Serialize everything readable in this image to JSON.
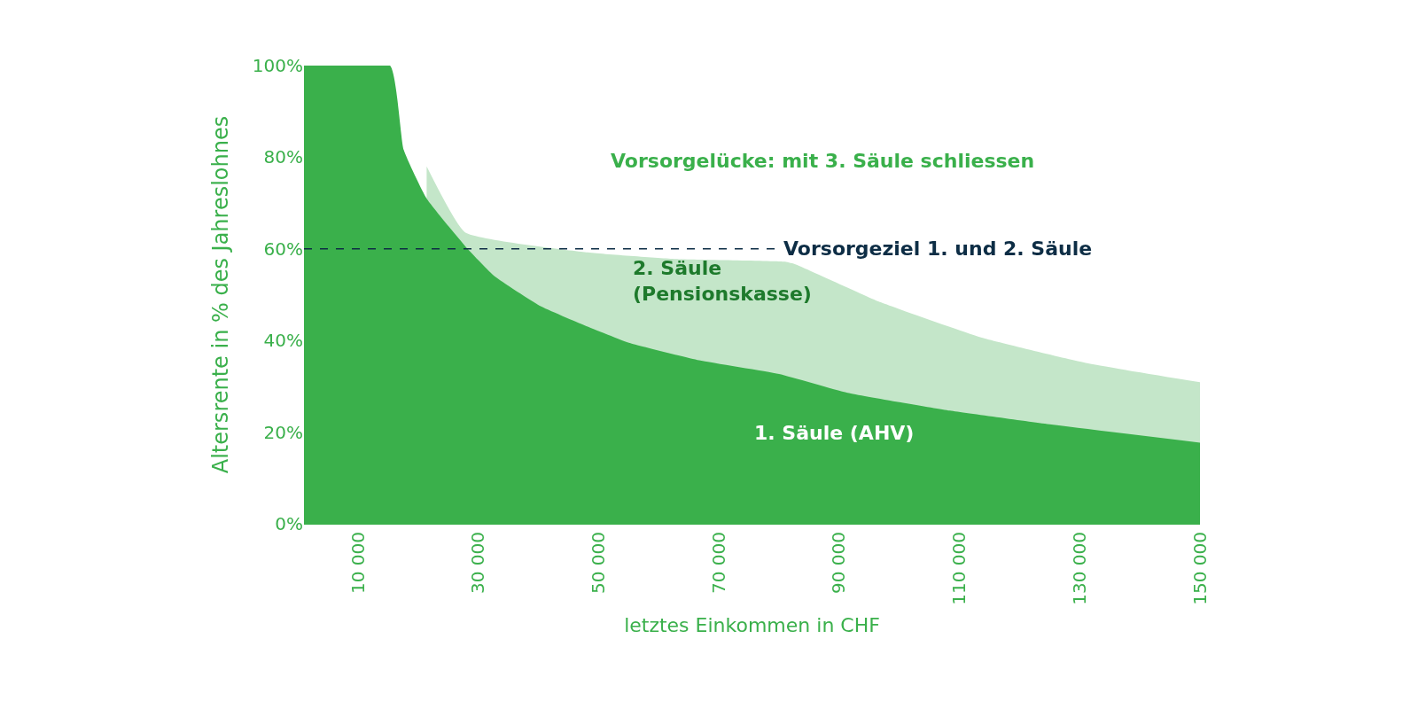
{
  "chart_data": {
    "type": "area",
    "xlabel": "letztes Einkommen in CHF",
    "ylabel": "Altersrente in % des Jahreslohnes",
    "xlim": [
      1000,
      150000
    ],
    "xticks": [
      {
        "value": 10000,
        "label": "10 000"
      },
      {
        "value": 30000,
        "label": "30 000"
      },
      {
        "value": 50000,
        "label": "50 000"
      },
      {
        "value": 70000,
        "label": "70 000"
      },
      {
        "value": 90000,
        "label": "90 000"
      },
      {
        "value": 110000,
        "label": "110 000"
      },
      {
        "value": 130000,
        "label": "130 000"
      },
      {
        "value": 150000,
        "label": "150 000"
      }
    ],
    "ylim": [
      0,
      100
    ],
    "yticks": [
      {
        "value": 0,
        "label": "0%"
      },
      {
        "value": 20,
        "label": "20%"
      },
      {
        "value": 40,
        "label": "40%"
      },
      {
        "value": 60,
        "label": "60%"
      },
      {
        "value": 80,
        "label": "80%"
      },
      {
        "value": 100,
        "label": "100%"
      }
    ],
    "series": [
      {
        "name": "2. Säule\n(Pensionskasse)",
        "color": "#c4e6c9",
        "x": [
          21400,
          27800,
          47700,
          62800,
          81000,
          82800,
          97000,
          114000,
          131000,
          150000
        ],
        "values": [
          78,
          63.6,
          59.3,
          57.8,
          57.2,
          56.6,
          48.3,
          40.5,
          35.1,
          30.9
        ]
      },
      {
        "name": "1. Säule (AHV)",
        "color": "#3ab04b",
        "x": [
          1000,
          15300,
          17600,
          21400,
          28200,
          32700,
          40200,
          47700,
          55300,
          66700,
          80000,
          91400,
          108400,
          125600,
          150000
        ],
        "values": [
          100,
          100,
          81.6,
          71,
          60,
          54,
          47.6,
          43.3,
          39.4,
          35.7,
          32.7,
          28.6,
          24.7,
          21.6,
          17.7
        ]
      }
    ],
    "ref_lines": [
      {
        "axis": "y",
        "value": 60,
        "label": "Vorsorgeziel 1. und 2. Säule",
        "color": "#0d2d45",
        "line_style": "dashed"
      }
    ],
    "annotations": [
      "Vorsorgelücke: mit 3. Säule schliessen"
    ],
    "legend": false
  }
}
